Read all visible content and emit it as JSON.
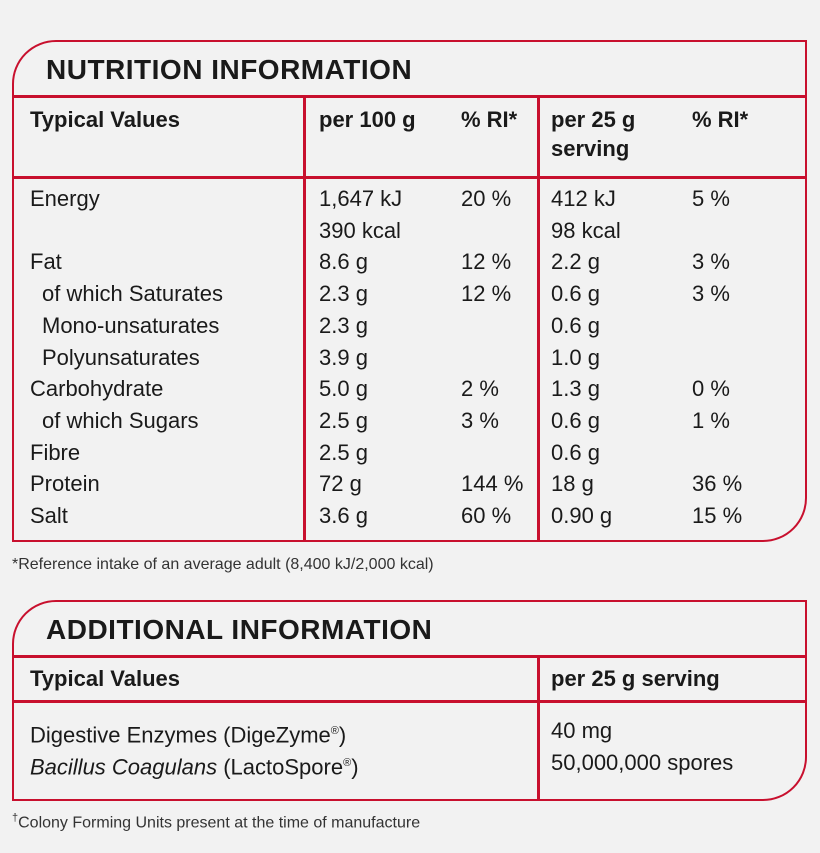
{
  "nutrition": {
    "title": "NUTRITION INFORMATION",
    "headers": {
      "typical": "Typical Values",
      "per100": "per 100 g",
      "ri100": "% RI*",
      "per25_line1": "per 25 g",
      "per25_line2": "serving",
      "ri25": "% RI*"
    },
    "rows": [
      {
        "label": "Energy",
        "indent": false,
        "per100": "1,647 kJ",
        "ri100": "20 %",
        "per25": "412 kJ",
        "ri25": "5 %"
      },
      {
        "label": "",
        "indent": false,
        "per100": "390 kcal",
        "ri100": "",
        "per25": "98 kcal",
        "ri25": ""
      },
      {
        "label": "Fat",
        "indent": false,
        "per100": "8.6 g",
        "ri100": "12 %",
        "per25": "2.2 g",
        "ri25": "3 %"
      },
      {
        "label": "of which Saturates",
        "indent": true,
        "per100": "2.3 g",
        "ri100": "12 %",
        "per25": "0.6 g",
        "ri25": "3 %"
      },
      {
        "label": "Mono-unsaturates",
        "indent": true,
        "per100": "2.3 g",
        "ri100": "",
        "per25": "0.6 g",
        "ri25": ""
      },
      {
        "label": "Polyunsaturates",
        "indent": true,
        "per100": "3.9 g",
        "ri100": "",
        "per25": "1.0 g",
        "ri25": ""
      },
      {
        "label": "Carbohydrate",
        "indent": false,
        "per100": "5.0 g",
        "ri100": "2 %",
        "per25": "1.3 g",
        "ri25": "0 %"
      },
      {
        "label": "of which Sugars",
        "indent": true,
        "per100": "2.5 g",
        "ri100": "3 %",
        "per25": "0.6 g",
        "ri25": "1 %"
      },
      {
        "label": "Fibre",
        "indent": false,
        "per100": "2.5 g",
        "ri100": "",
        "per25": "0.6 g",
        "ri25": ""
      },
      {
        "label": "Protein",
        "indent": false,
        "per100": "72 g",
        "ri100": "144 %",
        "per25": "18 g",
        "ri25": "36 %"
      },
      {
        "label": "Salt",
        "indent": false,
        "per100": "3.6 g",
        "ri100": "60 %",
        "per25": "0.90 g",
        "ri25": "15 %"
      }
    ],
    "footnote": "*Reference intake of an average adult (8,400 kJ/2,000 kcal)"
  },
  "additional": {
    "title": "ADDITIONAL INFORMATION",
    "headers": {
      "typical": "Typical Values",
      "per25": "per 25 g serving"
    },
    "row1": {
      "label": "Digestive Enzymes (DigeZyme",
      "reg": "®",
      "close": ")",
      "value": "40 mg"
    },
    "row2": {
      "label_italic": "Bacillus Coagulans",
      "label_rest": " (LactoSpore",
      "reg": "®",
      "close": ")",
      "value": "50,000,000 spores"
    },
    "footnote_mark": "†",
    "footnote": "Colony Forming Units present at the time of manufacture"
  },
  "colors": {
    "accent": "#c8102e",
    "background": "#f2f2f2",
    "text": "#1a1a1a"
  }
}
